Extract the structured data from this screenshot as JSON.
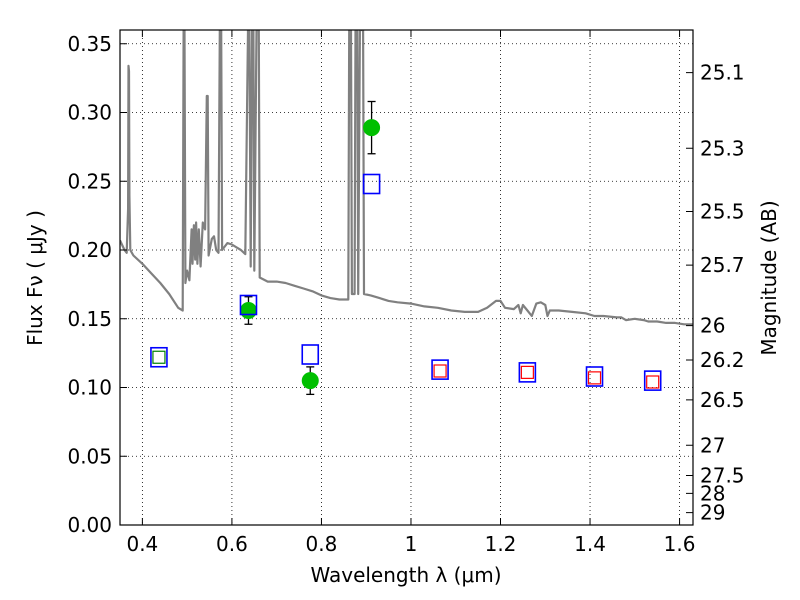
{
  "chart_data": {
    "type": "scatter",
    "xlabel": "Wavelength  λ (μm)",
    "ylabel": "Flux  Fν  ( μJy )",
    "ylabel_right": "Magnitude (AB)",
    "xlim": [
      0.35,
      1.63
    ],
    "ylim": [
      0.0,
      0.36
    ],
    "grid": true,
    "x_ticks": [
      0.4,
      0.6,
      0.8,
      1.0,
      1.2,
      1.4,
      1.6
    ],
    "x_tick_labels": [
      "0.4",
      "0.6",
      "0.8",
      "1",
      "1.2",
      "1.4",
      "1.6"
    ],
    "y_ticks": [
      0.0,
      0.05,
      0.1,
      0.15,
      0.2,
      0.25,
      0.3,
      0.35
    ],
    "y_tick_labels": [
      "0.00",
      "0.05",
      "0.10",
      "0.15",
      "0.20",
      "0.25",
      "0.30",
      "0.35"
    ],
    "right_ticks": [
      {
        "label": "25.1",
        "flux": 0.329
      },
      {
        "label": "25.3",
        "flux": 0.274
      },
      {
        "label": "25.5",
        "flux": 0.228
      },
      {
        "label": "25.7",
        "flux": 0.189
      },
      {
        "label": "26",
        "flux": 0.145
      },
      {
        "label": "26.2",
        "flux": 0.12
      },
      {
        "label": "26.5",
        "flux": 0.091
      },
      {
        "label": "27",
        "flux": 0.058
      },
      {
        "label": "27.5",
        "flux": 0.036
      },
      {
        "label": "28",
        "flux": 0.023
      },
      {
        "label": "29",
        "flux": 0.009
      }
    ],
    "series": [
      {
        "kind": "line",
        "color": "#808080",
        "points": [
          [
            0.35,
            0.207
          ],
          [
            0.36,
            0.2
          ],
          [
            0.365,
            0.198
          ],
          [
            0.368,
            0.23
          ],
          [
            0.369,
            0.334
          ],
          [
            0.37,
            0.33
          ],
          [
            0.371,
            0.24
          ],
          [
            0.373,
            0.2
          ],
          [
            0.38,
            0.196
          ],
          [
            0.4,
            0.19
          ],
          [
            0.42,
            0.183
          ],
          [
            0.44,
            0.176
          ],
          [
            0.46,
            0.168
          ],
          [
            0.48,
            0.158
          ],
          [
            0.49,
            0.156
          ],
          [
            0.492,
            0.36
          ],
          [
            0.494,
            0.36
          ],
          [
            0.496,
            0.176
          ],
          [
            0.5,
            0.185
          ],
          [
            0.505,
            0.178
          ],
          [
            0.51,
            0.215
          ],
          [
            0.512,
            0.19
          ],
          [
            0.515,
            0.218
          ],
          [
            0.518,
            0.193
          ],
          [
            0.52,
            0.22
          ],
          [
            0.523,
            0.19
          ],
          [
            0.526,
            0.215
          ],
          [
            0.53,
            0.188
          ],
          [
            0.535,
            0.22
          ],
          [
            0.54,
            0.215
          ],
          [
            0.544,
            0.312
          ],
          [
            0.546,
            0.312
          ],
          [
            0.548,
            0.196
          ],
          [
            0.555,
            0.208
          ],
          [
            0.56,
            0.21
          ],
          [
            0.565,
            0.2
          ],
          [
            0.57,
            0.198
          ],
          [
            0.573,
            0.36
          ],
          [
            0.576,
            0.36
          ],
          [
            0.578,
            0.2
          ],
          [
            0.59,
            0.205
          ],
          [
            0.6,
            0.204
          ],
          [
            0.61,
            0.202
          ],
          [
            0.62,
            0.2
          ],
          [
            0.63,
            0.197
          ],
          [
            0.636,
            0.36
          ],
          [
            0.639,
            0.36
          ],
          [
            0.642,
            0.188
          ],
          [
            0.645,
            0.36
          ],
          [
            0.648,
            0.36
          ],
          [
            0.65,
            0.185
          ],
          [
            0.655,
            0.36
          ],
          [
            0.66,
            0.36
          ],
          [
            0.662,
            0.18
          ],
          [
            0.68,
            0.177
          ],
          [
            0.7,
            0.177
          ],
          [
            0.72,
            0.176
          ],
          [
            0.74,
            0.174
          ],
          [
            0.76,
            0.172
          ],
          [
            0.78,
            0.17
          ],
          [
            0.8,
            0.167
          ],
          [
            0.82,
            0.165
          ],
          [
            0.84,
            0.164
          ],
          [
            0.86,
            0.164
          ],
          [
            0.862,
            0.36
          ],
          [
            0.866,
            0.36
          ],
          [
            0.868,
            0.168
          ],
          [
            0.874,
            0.168
          ],
          [
            0.876,
            0.36
          ],
          [
            0.88,
            0.36
          ],
          [
            0.882,
            0.168
          ],
          [
            0.886,
            0.36
          ],
          [
            0.893,
            0.36
          ],
          [
            0.895,
            0.168
          ],
          [
            0.91,
            0.167
          ],
          [
            0.93,
            0.165
          ],
          [
            0.95,
            0.163
          ],
          [
            0.97,
            0.162
          ],
          [
            1.0,
            0.161
          ],
          [
            1.03,
            0.159
          ],
          [
            1.06,
            0.158
          ],
          [
            1.09,
            0.156
          ],
          [
            1.12,
            0.155
          ],
          [
            1.15,
            0.155
          ],
          [
            1.17,
            0.158
          ],
          [
            1.19,
            0.163
          ],
          [
            1.2,
            0.163
          ],
          [
            1.21,
            0.158
          ],
          [
            1.23,
            0.157
          ],
          [
            1.24,
            0.16
          ],
          [
            1.245,
            0.154
          ],
          [
            1.25,
            0.16
          ],
          [
            1.26,
            0.156
          ],
          [
            1.27,
            0.152
          ],
          [
            1.28,
            0.161
          ],
          [
            1.29,
            0.162
          ],
          [
            1.3,
            0.16
          ],
          [
            1.305,
            0.152
          ],
          [
            1.31,
            0.156
          ],
          [
            1.33,
            0.156
          ],
          [
            1.36,
            0.155
          ],
          [
            1.39,
            0.154
          ],
          [
            1.41,
            0.152
          ],
          [
            1.43,
            0.152
          ],
          [
            1.46,
            0.151
          ],
          [
            1.47,
            0.151
          ],
          [
            1.48,
            0.149
          ],
          [
            1.5,
            0.15
          ],
          [
            1.52,
            0.149
          ],
          [
            1.53,
            0.148
          ],
          [
            1.55,
            0.148
          ],
          [
            1.57,
            0.147
          ],
          [
            1.59,
            0.147
          ],
          [
            1.61,
            0.146
          ],
          [
            1.63,
            0.146
          ]
        ]
      },
      {
        "kind": "points",
        "marker": "circle",
        "color": "#00bf00",
        "points": [
          {
            "x": 0.637,
            "y": 0.156,
            "err": 0.01
          },
          {
            "x": 0.775,
            "y": 0.105,
            "err": 0.01
          },
          {
            "x": 0.912,
            "y": 0.289,
            "err": 0.019
          }
        ]
      },
      {
        "kind": "points",
        "marker": "square-open",
        "color": "#0000ff",
        "points": [
          {
            "x": 0.437,
            "y": 0.122
          },
          {
            "x": 0.637,
            "y": 0.16
          },
          {
            "x": 0.775,
            "y": 0.124
          },
          {
            "x": 0.912,
            "y": 0.248
          },
          {
            "x": 1.065,
            "y": 0.113
          },
          {
            "x": 1.26,
            "y": 0.111
          },
          {
            "x": 1.41,
            "y": 0.108
          },
          {
            "x": 1.54,
            "y": 0.105
          }
        ]
      },
      {
        "kind": "points",
        "marker": "square-small-open",
        "color": "#008000",
        "points": [
          {
            "x": 0.437,
            "y": 0.122
          }
        ]
      },
      {
        "kind": "points",
        "marker": "square-small-open",
        "color": "#ff0000",
        "points": [
          {
            "x": 1.065,
            "y": 0.112
          },
          {
            "x": 1.26,
            "y": 0.111
          },
          {
            "x": 1.41,
            "y": 0.107
          },
          {
            "x": 1.54,
            "y": 0.104
          }
        ]
      }
    ]
  }
}
